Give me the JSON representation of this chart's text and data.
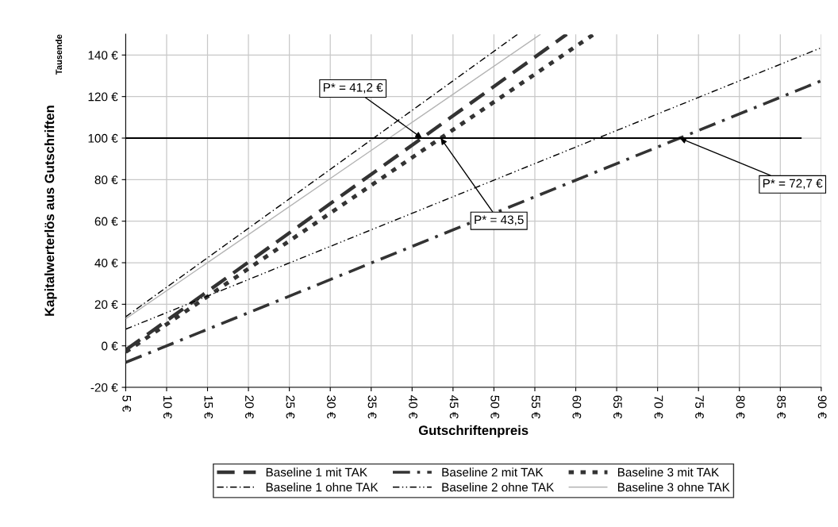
{
  "chart_data": {
    "type": "line",
    "xlabel": "Gutschriftenpreis",
    "ylabel": "Kapitalwerterlös aus Gutschriften",
    "xlim": [
      5,
      90
    ],
    "ylim": [
      -20,
      150
    ],
    "xticks": [
      {
        "value": 5,
        "label": "5 €"
      },
      {
        "value": 10,
        "label": "10 €"
      },
      {
        "value": 15,
        "label": "15 €"
      },
      {
        "value": 20,
        "label": "20 €"
      },
      {
        "value": 25,
        "label": "25 €"
      },
      {
        "value": 30,
        "label": "30 €"
      },
      {
        "value": 35,
        "label": "35 €"
      },
      {
        "value": 40,
        "label": "40 €"
      },
      {
        "value": 45,
        "label": "45 €"
      },
      {
        "value": 50,
        "label": "50 €"
      },
      {
        "value": 55,
        "label": "55 €"
      },
      {
        "value": 60,
        "label": "60 €"
      },
      {
        "value": 65,
        "label": "65 €"
      },
      {
        "value": 70,
        "label": "70 €"
      },
      {
        "value": 75,
        "label": "75 €"
      },
      {
        "value": 80,
        "label": "80 €"
      },
      {
        "value": 85,
        "label": "85 €"
      },
      {
        "value": 90,
        "label": "90 €"
      }
    ],
    "yticks": [
      {
        "value": -20,
        "label": "-20 €"
      },
      {
        "value": 0,
        "label": "0 €"
      },
      {
        "value": 20,
        "label": "20 €"
      },
      {
        "value": 40,
        "label": "40 €"
      },
      {
        "value": 60,
        "label": "60 €"
      },
      {
        "value": 80,
        "label": "80 €"
      },
      {
        "value": 100,
        "label": "100 €"
      },
      {
        "value": 120,
        "label": "120 €"
      },
      {
        "value": 140,
        "label": "140 €"
      }
    ],
    "grid": true,
    "legend": "bottom",
    "marker": "none",
    "series": [
      {
        "name": "Baseline 1 mit TAK",
        "color": "#333333",
        "line_style": "dashed",
        "x": [
          5,
          41.2,
          58.9
        ],
        "values": [
          -2,
          100,
          150
        ]
      },
      {
        "name": "Baseline 2 mit TAK",
        "color": "#333333",
        "line_style": "dashdot",
        "x": [
          5,
          72.7,
          90
        ],
        "values": [
          -8,
          100,
          127.6
        ]
      },
      {
        "name": "Baseline 3 mit TAK",
        "color": "#333333",
        "line_style": "dotted",
        "x": [
          5,
          43.5,
          62.2
        ],
        "values": [
          -3,
          100,
          150
        ]
      },
      {
        "name": "Baseline 1 ohne TAK",
        "color": "#000000",
        "line_style": "dashdot",
        "x": [
          5,
          35.3,
          52.9
        ],
        "values": [
          14,
          100,
          150
        ]
      },
      {
        "name": "Baseline 2 ohne TAK",
        "color": "#000000",
        "line_style": "dashdotdot",
        "x": [
          5,
          62.7,
          90
        ],
        "values": [
          8,
          100,
          143.5
        ]
      },
      {
        "name": "Baseline 3 ohne TAK",
        "color": "#b4b4b4",
        "line_style": "solid",
        "x": [
          5,
          37.2,
          55.7
        ],
        "values": [
          13,
          100,
          150
        ]
      },
      {
        "color": "#000000",
        "line_style": "solid",
        "x": [
          5,
          87.6
        ],
        "values": [
          100,
          100
        ]
      }
    ],
    "annotations": [
      "Tausende",
      {
        "text": "P* = 41,2 €",
        "x": 41.2,
        "y": 100
      },
      {
        "text": "P* = 43,5",
        "x": 43.5,
        "y": 100
      },
      {
        "text": "P* = 72,7 €",
        "x": 72.7,
        "y": 100
      }
    ]
  }
}
